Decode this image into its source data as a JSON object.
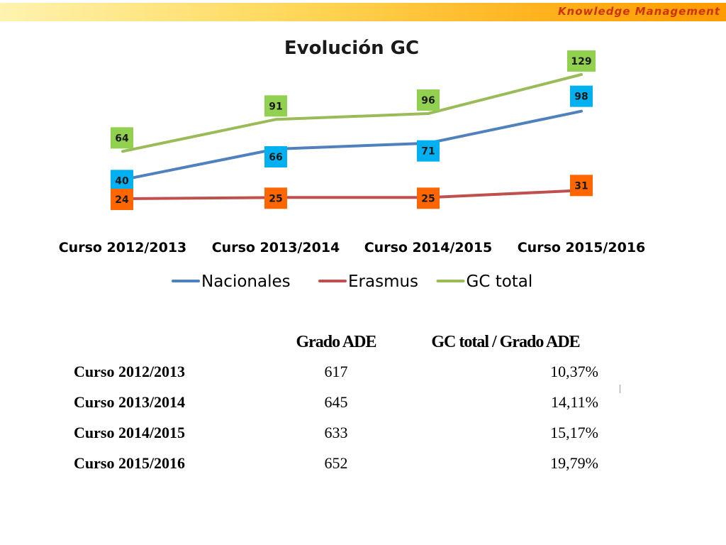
{
  "header": {
    "brand_label": "Knowledge Management"
  },
  "chart_data": {
    "type": "line",
    "title": "Evolución GC",
    "categories": [
      "Curso 2012/2013",
      "Curso 2013/2014",
      "Curso 2014/2015",
      "Curso 2015/2016"
    ],
    "series": [
      {
        "name": "Nacionales",
        "values": [
          40,
          66,
          71,
          98
        ],
        "color": "#4f81bd",
        "label_bg": "#00b0f0"
      },
      {
        "name": "Erasmus",
        "values": [
          24,
          25,
          25,
          31
        ],
        "color": "#c0504d",
        "label_bg": "#ff6600"
      },
      {
        "name": "GC total",
        "values": [
          64,
          91,
          96,
          129
        ],
        "color": "#9bbb59",
        "label_bg": "#92d050"
      }
    ],
    "legend_position": "bottom",
    "grid": false,
    "ylim": [
      0,
      150
    ]
  },
  "table": {
    "columns": [
      "",
      "Grado ADE",
      "GC total / Grado ADE"
    ],
    "rows": [
      {
        "label": "Curso 2012/2013",
        "grado_ade": "617",
        "ratio": "10,37%"
      },
      {
        "label": "Curso 2013/2014",
        "grado_ade": "645",
        "ratio": "14,11%"
      },
      {
        "label": "Curso 2014/2015",
        "grado_ade": "633",
        "ratio": "15,17%"
      },
      {
        "label": "Curso 2015/2016",
        "grado_ade": "652",
        "ratio": "19,79%"
      }
    ]
  }
}
